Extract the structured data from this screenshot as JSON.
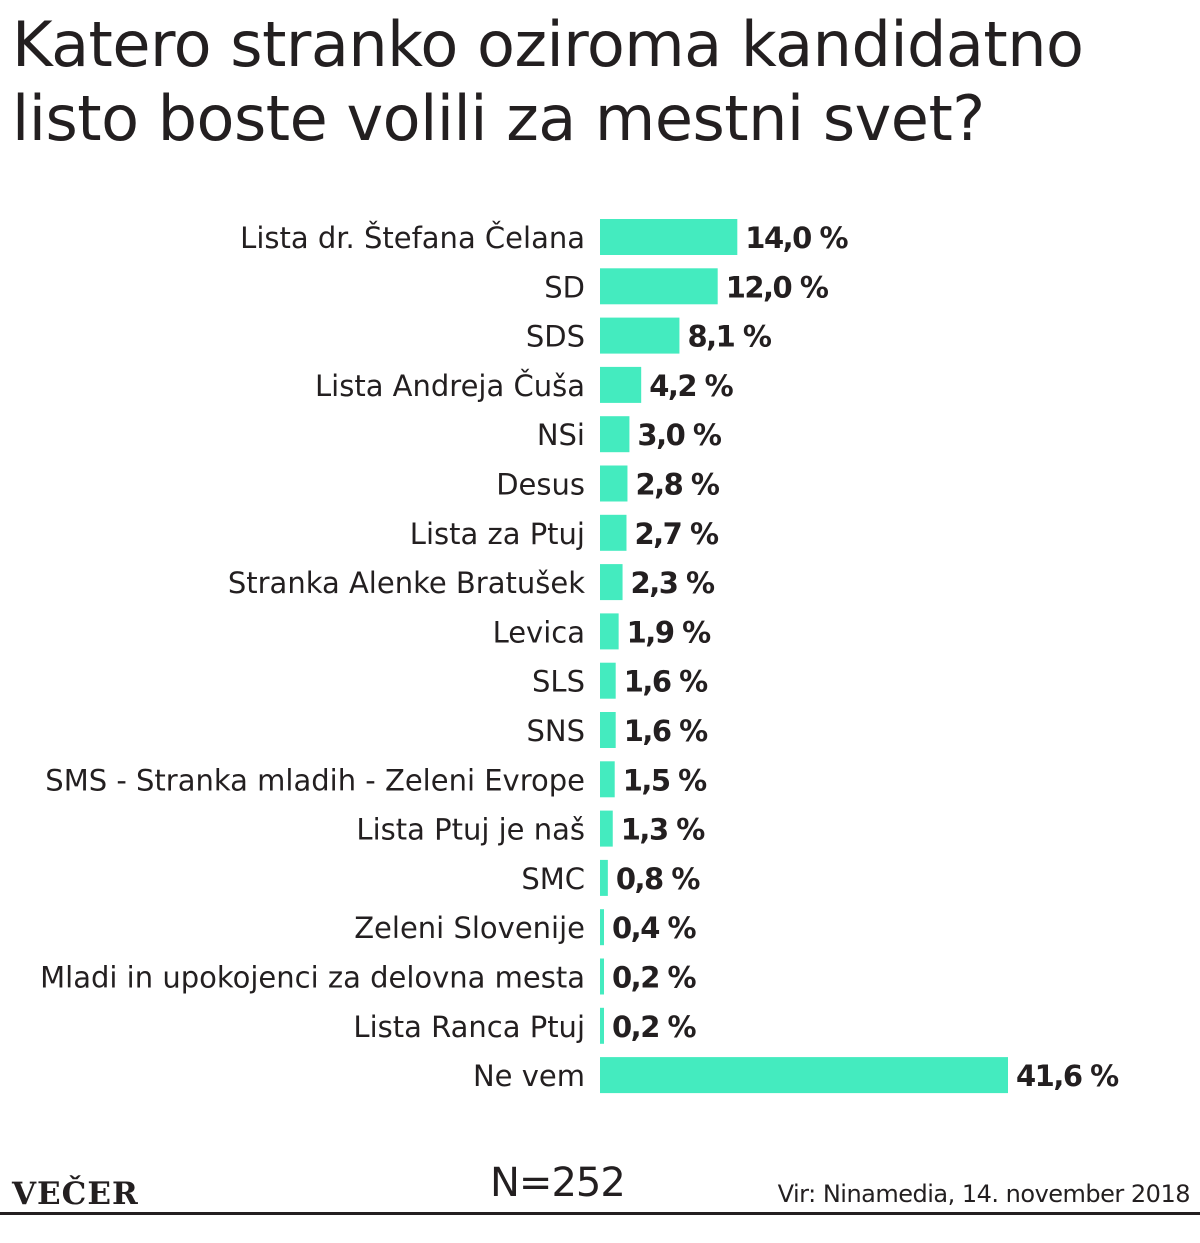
{
  "chart_data": {
    "type": "bar",
    "orientation": "horizontal",
    "title": "Katero stranko oziroma kandidatno listo boste volili za mestni svet?",
    "categories": [
      "Lista dr. Štefana Čelana",
      "SD",
      "SDS",
      "Lista Andreja Čuša",
      "NSi",
      "Desus",
      "Lista za Ptuj",
      "Stranka Alenke Bratušek",
      "Levica",
      "SLS",
      "SNS",
      "SMS - Stranka mladih - Zeleni Evrope",
      "Lista Ptuj je naš",
      "SMC",
      "Zeleni Slovenije",
      "Mladi in upokojenci za delovna mesta",
      "Lista Ranca Ptuj",
      "Ne vem"
    ],
    "values": [
      14.0,
      12.0,
      8.1,
      4.2,
      3.0,
      2.8,
      2.7,
      2.3,
      1.9,
      1.6,
      1.6,
      1.5,
      1.3,
      0.8,
      0.4,
      0.2,
      0.2,
      41.6
    ],
    "value_labels": [
      "14,0 %",
      "12,0 %",
      "8,1 %",
      "4,2 %",
      "3,0 %",
      "2,8 %",
      "2,7 %",
      "2,3 %",
      "1,9 %",
      "1,6 %",
      "1,6 %",
      "1,5 %",
      "1,3 %",
      "0,8 %",
      "0,4 %",
      "0,2 %",
      "0,2 %",
      "41,6 %"
    ],
    "unit": "%",
    "xlim": [
      0,
      41.6
    ],
    "grid": false,
    "legend": "none",
    "bar_color": "#44ebbf"
  },
  "footer": {
    "brand": "VEČER",
    "sample": "N=252",
    "source": "Vir: Ninamedia, 14. november 2018"
  }
}
